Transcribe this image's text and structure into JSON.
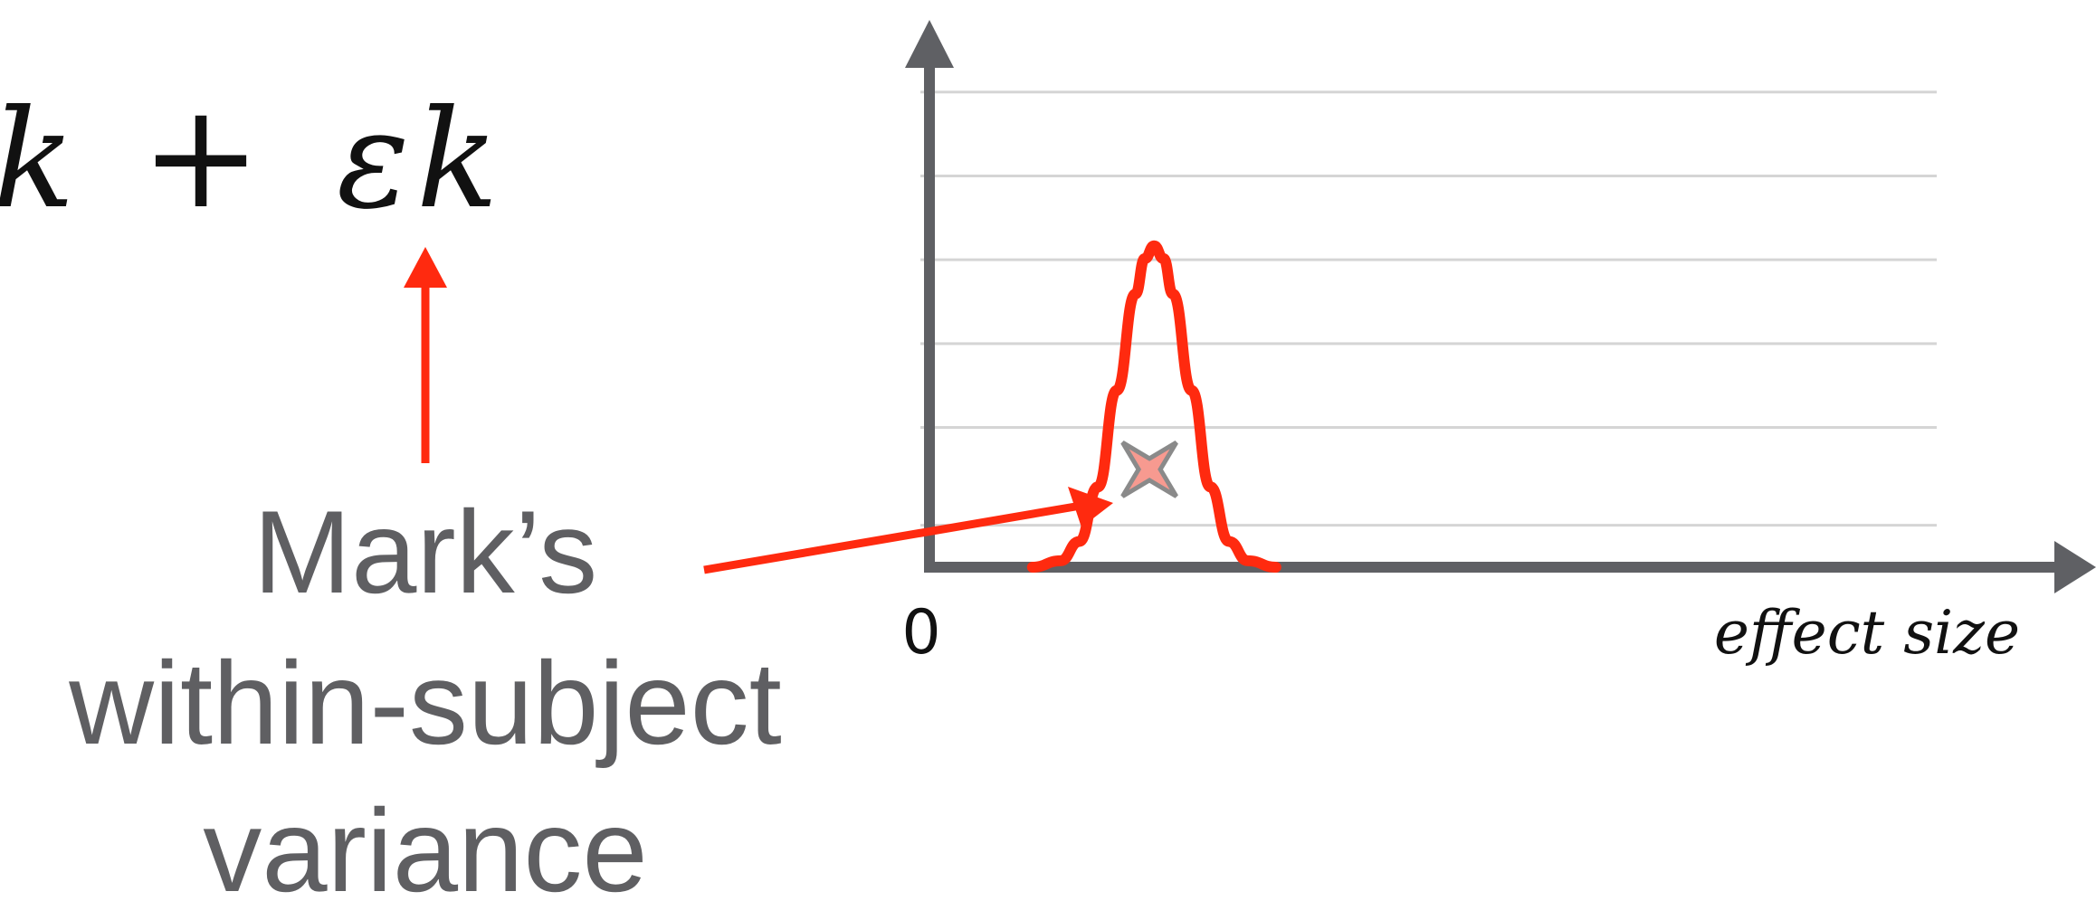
{
  "equation": {
    "term_k": "k",
    "plus": "+",
    "epsilon": "ε",
    "sub_k": "k"
  },
  "caption": {
    "line1": "Mark’s",
    "line2": "within-subject",
    "line3": "variance"
  },
  "chart_data": {
    "type": "line",
    "xlabel": "effect size",
    "ylabel": "",
    "x_tick_labels": [
      "0"
    ],
    "grid": true,
    "series": [
      {
        "x": [
          0.22,
          0.28,
          0.32,
          0.36,
          0.4,
          0.44,
          0.46,
          0.48,
          0.5,
          0.52,
          0.56,
          0.6,
          0.64,
          0.68,
          0.74
        ],
        "y": [
          0.0,
          0.02,
          0.08,
          0.25,
          0.55,
          0.85,
          0.96,
          1.0,
          0.96,
          0.85,
          0.55,
          0.25,
          0.08,
          0.02,
          0.0
        ]
      }
    ],
    "marker_x": 0.47,
    "xlim": [
      0,
      2.2
    ],
    "ylim": [
      0,
      3.8
    ]
  },
  "colors": {
    "accent": "#ff2a0f",
    "axis": "#5f6064",
    "grid": "#d5d5d5",
    "marker_fill": "#f79a90",
    "marker_stroke": "#8a8a8a",
    "caption": "#5f5f62"
  },
  "icons": {
    "marker": "four-point-star-icon",
    "arrow_up": "arrow-up-icon",
    "arrow_pointer": "arrow-pointer-icon"
  }
}
